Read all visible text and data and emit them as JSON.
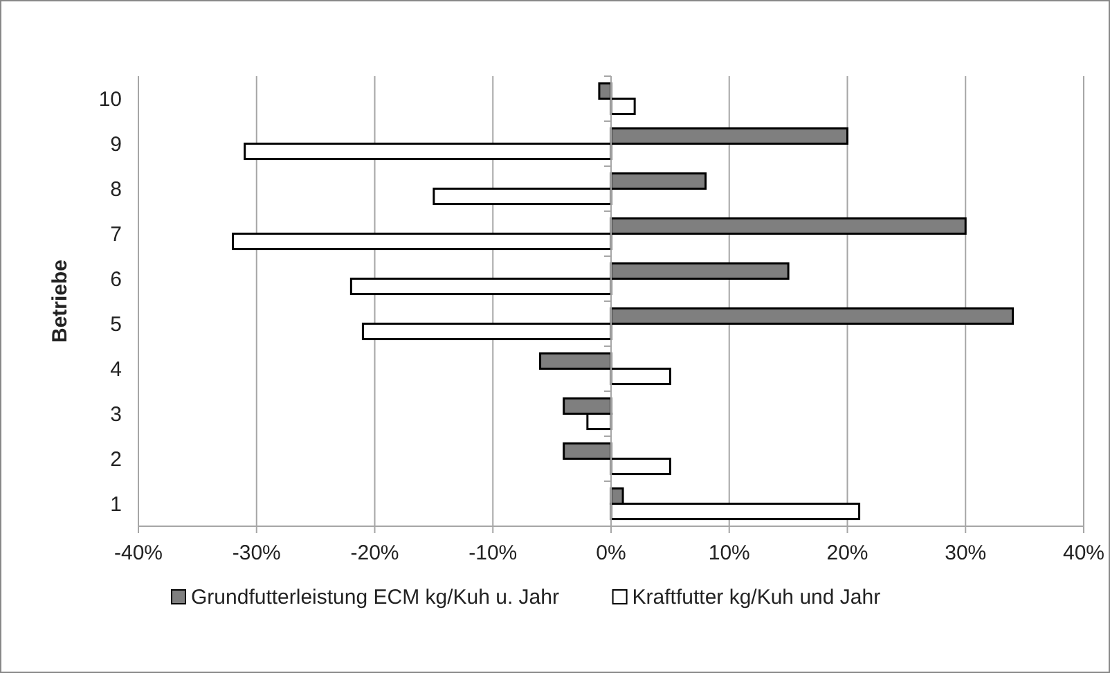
{
  "chart_data": {
    "type": "bar",
    "orientation": "horizontal",
    "ylabel": "Betriebe",
    "categories": [
      "10",
      "9",
      "8",
      "7",
      "6",
      "5",
      "4",
      "3",
      "2",
      "1"
    ],
    "series": [
      {
        "name": "Grundfutterleistung ECM kg/Kuh u. Jahr",
        "color": "#7f7f7f",
        "values": [
          -1,
          20,
          8,
          30,
          15,
          34,
          -6,
          -4,
          -4,
          1
        ]
      },
      {
        "name": "Kraftfutter kg/Kuh und Jahr",
        "color": "#ffffff",
        "values": [
          2,
          -31,
          -15,
          -32,
          -22,
          -21,
          5,
          -2,
          5,
          21
        ]
      }
    ],
    "xlim": [
      -40,
      40
    ],
    "xticks": [
      {
        "value": -40,
        "label": "-40%"
      },
      {
        "value": -30,
        "label": "-30%"
      },
      {
        "value": -20,
        "label": "-20%"
      },
      {
        "value": -10,
        "label": "-10%"
      },
      {
        "value": 0,
        "label": "0%"
      },
      {
        "value": 10,
        "label": "10%"
      },
      {
        "value": 20,
        "label": "20%"
      },
      {
        "value": 30,
        "label": "30%"
      },
      {
        "value": 40,
        "label": "40%"
      }
    ],
    "grid": "x",
    "legend": "bottom"
  }
}
